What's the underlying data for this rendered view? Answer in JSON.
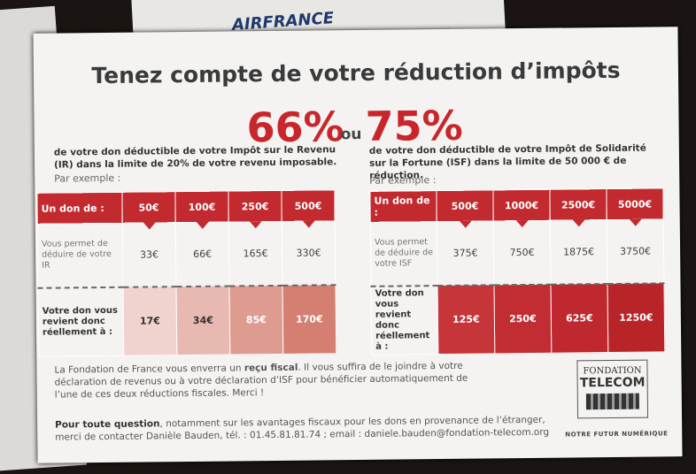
{
  "background": {
    "brand": "AIRFRANCE"
  },
  "header": {
    "title": "Tenez compte de votre réduction d’impôts"
  },
  "rates": {
    "left": "66%",
    "or": "ou",
    "right": "75%"
  },
  "panels": [
    {
      "description": "de votre don déductible de votre Impôt sur le Revenu (IR) dans la limite de 20% de votre revenu imposable.",
      "example_label": "Par exemple :",
      "table": {
        "header": [
          "Un don de :",
          "50€",
          "100€",
          "250€",
          "500€"
        ],
        "rows": [
          [
            "Vous permet de déduire de votre IR",
            "33€",
            "66€",
            "165€",
            "330€"
          ],
          [
            "Votre don vous revient donc réellement à :",
            "17€",
            "34€",
            "85€",
            "170€"
          ]
        ]
      }
    },
    {
      "description": "de votre don déductible de votre Impôt de Solidarité sur la Fortune (ISF) dans la limite de 50 000 € de réduction.",
      "example_label": "Par exemple :",
      "table": {
        "header": [
          "Un don de :",
          "500€",
          "1000€",
          "2500€",
          "5000€"
        ],
        "rows": [
          [
            "Vous permet de déduire de votre ISF",
            "375€",
            "750€",
            "1875€",
            "3750€"
          ],
          [
            "Votre don vous revient donc réellement à :",
            "125€",
            "250€",
            "625€",
            "1250€"
          ]
        ]
      }
    }
  ],
  "footer": {
    "receipt": [
      "La Fondation de France vous enverra un ",
      "reçu fiscal",
      ". Il vous suffira de le joindre à votre déclaration de revenus ou à votre déclaration d’ISF pour bénéficier automatiquement de l’une de ces deux réductions fiscales. Merci !"
    ],
    "contact": [
      "Pour toute question",
      ", notamment sur les avantages fiscaux pour les dons en provenance de l’étranger, merci de contacter Danièle Bauden, tél. : 01.45.81.81.74 ; email : daniele.bauden@fondation-telecom.org"
    ]
  },
  "logo": {
    "line1": "FONDATION",
    "line2": "TELECOM",
    "tagline": "NOTRE FUTUR NUMÉRIQUE"
  }
}
